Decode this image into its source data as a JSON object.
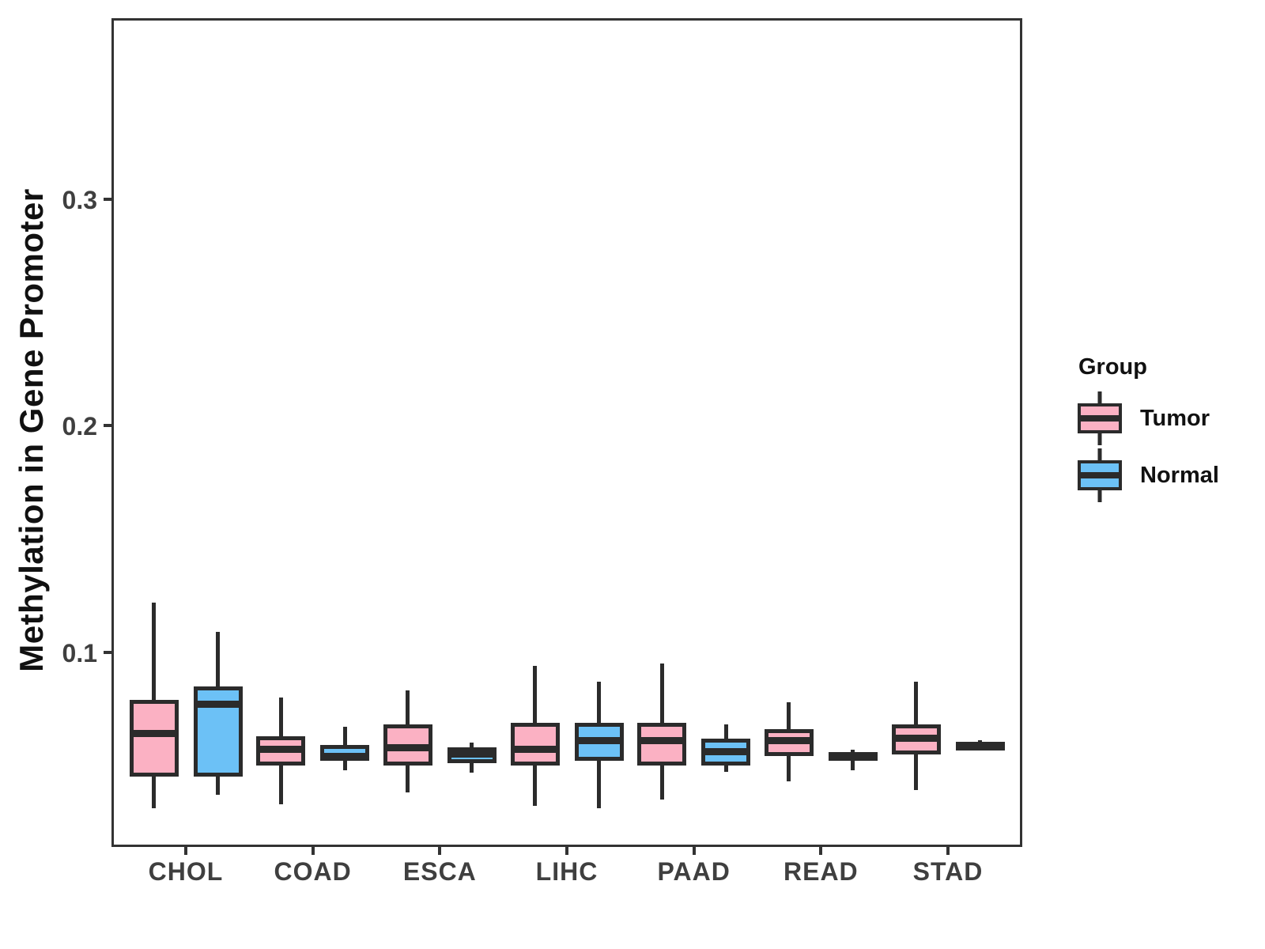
{
  "figure": {
    "background": "#ffffff",
    "panel_border_color": "#333333",
    "stroke_color": "#2b2b2b",
    "axis_text_color": "#3f3f3f"
  },
  "chart_data": {
    "type": "boxplot",
    "title": "",
    "xlabel": "",
    "ylabel": "Methylation in Gene Promoter",
    "categories": [
      "CHOL",
      "COAD",
      "ESCA",
      "LIHC",
      "PAAD",
      "READ",
      "STAD"
    ],
    "y_ticks": [
      0.1,
      0.2,
      0.3
    ],
    "y_tick_labels": [
      "0.1",
      "0.2",
      "0.3"
    ],
    "ylim": [
      0.014,
      0.38
    ],
    "grid": false,
    "legend": {
      "title": "Group",
      "position": "right",
      "entries": [
        {
          "label": "Tumor",
          "color": "#FBB1C3"
        },
        {
          "label": "Normal",
          "color": "#6CC1F6"
        }
      ]
    },
    "series": [
      {
        "name": "Tumor",
        "color": "#FBB1C3",
        "boxes": [
          {
            "category": "CHOL",
            "whisker_low": 0.031,
            "q1": 0.045,
            "median": 0.064,
            "q3": 0.079,
            "whisker_high": 0.122
          },
          {
            "category": "COAD",
            "whisker_low": 0.033,
            "q1": 0.05,
            "median": 0.057,
            "q3": 0.063,
            "whisker_high": 0.08
          },
          {
            "category": "ESCA",
            "whisker_low": 0.038,
            "q1": 0.05,
            "median": 0.058,
            "q3": 0.068,
            "whisker_high": 0.083
          },
          {
            "category": "LIHC",
            "whisker_low": 0.032,
            "q1": 0.05,
            "median": 0.057,
            "q3": 0.069,
            "whisker_high": 0.094
          },
          {
            "category": "PAAD",
            "whisker_low": 0.035,
            "q1": 0.05,
            "median": 0.061,
            "q3": 0.069,
            "whisker_high": 0.095
          },
          {
            "category": "READ",
            "whisker_low": 0.043,
            "q1": 0.054,
            "median": 0.061,
            "q3": 0.066,
            "whisker_high": 0.078
          },
          {
            "category": "STAD",
            "whisker_low": 0.039,
            "q1": 0.055,
            "median": 0.062,
            "q3": 0.068,
            "whisker_high": 0.087
          }
        ]
      },
      {
        "name": "Normal",
        "color": "#6CC1F6",
        "boxes": [
          {
            "category": "CHOL",
            "whisker_low": 0.037,
            "q1": 0.045,
            "median": 0.077,
            "q3": 0.085,
            "whisker_high": 0.109
          },
          {
            "category": "COAD",
            "whisker_low": 0.048,
            "q1": 0.052,
            "median": 0.054,
            "q3": 0.059,
            "whisker_high": 0.067
          },
          {
            "category": "ESCA",
            "whisker_low": 0.047,
            "q1": 0.051,
            "median": 0.055,
            "q3": 0.058,
            "whisker_high": 0.06
          },
          {
            "category": "LIHC",
            "whisker_low": 0.031,
            "q1": 0.052,
            "median": 0.061,
            "q3": 0.069,
            "whisker_high": 0.087
          },
          {
            "category": "PAAD",
            "whisker_low": 0.047,
            "q1": 0.05,
            "median": 0.056,
            "q3": 0.062,
            "whisker_high": 0.068
          },
          {
            "category": "READ",
            "whisker_low": 0.048,
            "q1": 0.052,
            "median": 0.054,
            "q3": 0.056,
            "whisker_high": 0.057
          },
          {
            "category": "STAD",
            "whisker_low": 0.057,
            "q1": 0.058,
            "median": 0.059,
            "q3": 0.06,
            "whisker_high": 0.061
          }
        ]
      }
    ]
  }
}
